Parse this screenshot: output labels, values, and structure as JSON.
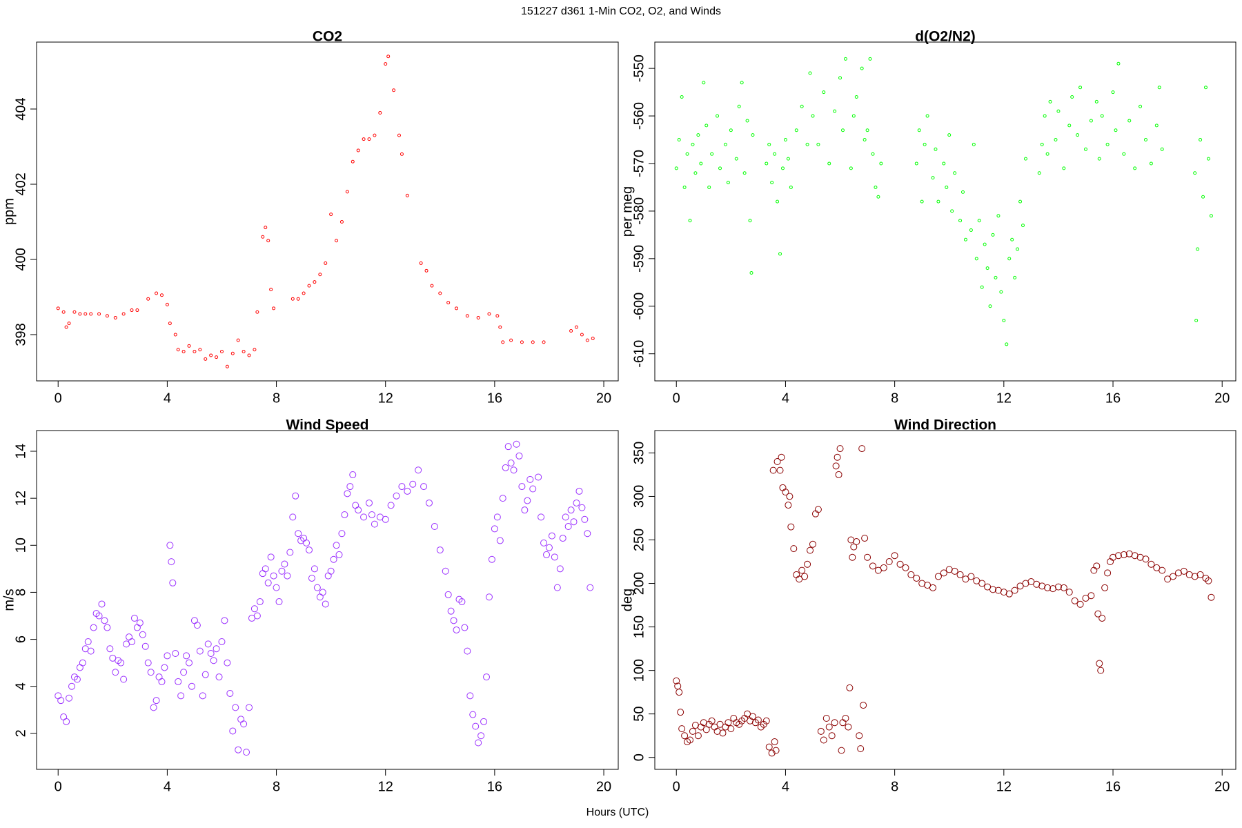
{
  "title": "151227   d361   1-Min CO2, O2, and Winds",
  "xlabel": "Hours (UTC)",
  "chart_data": [
    {
      "type": "scatter",
      "title": "CO2",
      "ylabel": "ppm",
      "color": "#ff0000",
      "marker_size": 2,
      "xlim": [
        -0.79,
        20.53
      ],
      "ylim": [
        396.77,
        405.78
      ],
      "xticks": [
        0,
        4,
        8,
        12,
        16,
        20
      ],
      "yticks": [
        398,
        400,
        402,
        404
      ],
      "x": [
        0.0,
        0.2,
        0.3,
        0.4,
        0.6,
        0.8,
        1.0,
        1.2,
        1.5,
        1.8,
        2.1,
        2.4,
        2.7,
        2.9,
        3.3,
        3.6,
        3.8,
        4.0,
        4.1,
        4.3,
        4.4,
        4.6,
        4.8,
        5.0,
        5.2,
        5.4,
        5.6,
        5.8,
        6.0,
        6.2,
        6.4,
        6.6,
        6.8,
        7.0,
        7.2,
        7.3,
        7.5,
        7.6,
        7.7,
        7.8,
        7.9,
        8.6,
        8.8,
        9.0,
        9.2,
        9.4,
        9.6,
        9.8,
        10.0,
        10.2,
        10.4,
        10.6,
        10.8,
        11.0,
        11.2,
        11.4,
        11.6,
        11.8,
        12.0,
        12.1,
        12.3,
        12.5,
        12.6,
        12.8,
        13.3,
        13.5,
        13.7,
        14.0,
        14.3,
        14.6,
        15.0,
        15.4,
        15.8,
        16.1,
        16.2,
        16.3,
        16.6,
        17.0,
        17.4,
        17.8,
        18.8,
        19.0,
        19.2,
        19.4,
        19.6
      ],
      "values": [
        398.7,
        398.6,
        398.2,
        398.3,
        398.6,
        398.55,
        398.55,
        398.55,
        398.55,
        398.5,
        398.45,
        398.55,
        398.65,
        398.65,
        398.95,
        399.1,
        399.05,
        398.8,
        398.3,
        398.0,
        397.6,
        397.55,
        397.7,
        397.55,
        397.6,
        397.35,
        397.45,
        397.4,
        397.55,
        397.15,
        397.5,
        397.85,
        397.55,
        397.45,
        397.6,
        398.6,
        400.6,
        400.85,
        400.5,
        399.2,
        398.7,
        398.95,
        398.95,
        399.1,
        399.3,
        399.4,
        399.6,
        399.9,
        401.2,
        400.5,
        401.0,
        401.8,
        402.6,
        402.9,
        403.2,
        403.2,
        403.3,
        403.9,
        405.2,
        405.4,
        404.5,
        403.3,
        402.8,
        401.7,
        399.9,
        399.7,
        399.3,
        399.1,
        398.85,
        398.7,
        398.5,
        398.45,
        398.55,
        398.5,
        398.2,
        397.8,
        397.85,
        397.8,
        397.8,
        397.8,
        398.1,
        398.2,
        398.0,
        397.85,
        397.9
      ]
    },
    {
      "type": "scatter",
      "title": "d(O2/N2)",
      "ylabel": "per meg",
      "color": "#00ff00",
      "marker_size": 2,
      "xlim": [
        -0.79,
        20.5
      ],
      "ylim": [
        -615.7,
        -544.47
      ],
      "xticks": [
        0,
        4,
        8,
        12,
        16,
        20
      ],
      "yticks": [
        -610,
        -600,
        -590,
        -580,
        -570,
        -560,
        -550
      ],
      "x": [
        0.0,
        0.1,
        0.2,
        0.3,
        0.4,
        0.5,
        0.6,
        0.7,
        0.8,
        0.9,
        1.0,
        1.1,
        1.2,
        1.3,
        1.5,
        1.6,
        1.8,
        1.9,
        2.0,
        2.2,
        2.3,
        2.4,
        2.5,
        2.6,
        2.7,
        2.75,
        2.8,
        3.3,
        3.4,
        3.5,
        3.6,
        3.7,
        3.8,
        3.9,
        4.0,
        4.1,
        4.2,
        4.4,
        4.6,
        4.8,
        4.9,
        5.0,
        5.2,
        5.4,
        5.6,
        5.8,
        6.0,
        6.1,
        6.2,
        6.4,
        6.5,
        6.6,
        6.8,
        6.9,
        7.0,
        7.1,
        7.2,
        7.3,
        7.4,
        7.5,
        8.8,
        8.9,
        9.0,
        9.1,
        9.2,
        9.4,
        9.5,
        9.6,
        9.8,
        9.9,
        10.0,
        10.1,
        10.2,
        10.4,
        10.5,
        10.6,
        10.8,
        10.9,
        11.0,
        11.1,
        11.2,
        11.3,
        11.4,
        11.5,
        11.6,
        11.7,
        11.8,
        11.9,
        12.0,
        12.1,
        12.2,
        12.3,
        12.4,
        12.5,
        12.6,
        12.7,
        12.8,
        13.3,
        13.4,
        13.5,
        13.6,
        13.7,
        13.9,
        14.0,
        14.2,
        14.4,
        14.5,
        14.7,
        14.8,
        15.0,
        15.2,
        15.4,
        15.5,
        15.6,
        15.8,
        16.0,
        16.1,
        16.2,
        16.4,
        16.6,
        16.8,
        17.0,
        17.2,
        17.4,
        17.6,
        17.7,
        17.8,
        19.0,
        19.05,
        19.1,
        19.2,
        19.3,
        19.4,
        19.5,
        19.6
      ],
      "values": [
        -571,
        -565,
        -556,
        -575,
        -568,
        -582,
        -566,
        -572,
        -564,
        -570,
        -553,
        -562,
        -575,
        -568,
        -560,
        -571,
        -566,
        -574,
        -563,
        -569,
        -558,
        -553,
        -572,
        -561,
        -582,
        -593,
        -564,
        -570,
        -566,
        -574,
        -568,
        -578,
        -589,
        -571,
        -565,
        -569,
        -575,
        -563,
        -558,
        -566,
        -551,
        -560,
        -566,
        -555,
        -570,
        -559,
        -552,
        -563,
        -548,
        -571,
        -560,
        -556,
        -550,
        -565,
        -563,
        -548,
        -568,
        -575,
        -577,
        -570,
        -570,
        -563,
        -578,
        -566,
        -560,
        -573,
        -567,
        -578,
        -570,
        -575,
        -564,
        -580,
        -572,
        -582,
        -576,
        -586,
        -584,
        -566,
        -590,
        -582,
        -596,
        -587,
        -592,
        -600,
        -585,
        -594,
        -581,
        -597,
        -603,
        -608,
        -590,
        -586,
        -594,
        -588,
        -578,
        -583,
        -569,
        -572,
        -566,
        -560,
        -568,
        -557,
        -565,
        -559,
        -571,
        -562,
        -556,
        -564,
        -554,
        -567,
        -561,
        -557,
        -569,
        -560,
        -566,
        -555,
        -563,
        -549,
        -568,
        -561,
        -571,
        -558,
        -565,
        -570,
        -562,
        -554,
        -567,
        -572,
        -603,
        -588,
        -565,
        -577,
        -554,
        -569,
        -581
      ]
    },
    {
      "type": "scatter",
      "title": "Wind Speed",
      "ylabel": "m/s",
      "color": "#9b30ff",
      "marker_size": 4.5,
      "xlim": [
        -0.79,
        20.53
      ],
      "ylim": [
        0.47,
        14.88
      ],
      "xticks": [
        0,
        4,
        8,
        12,
        16,
        20
      ],
      "yticks": [
        2,
        4,
        6,
        8,
        10,
        12,
        14
      ],
      "x": [
        0.0,
        0.1,
        0.2,
        0.3,
        0.4,
        0.5,
        0.6,
        0.7,
        0.8,
        0.9,
        1.0,
        1.1,
        1.2,
        1.3,
        1.4,
        1.5,
        1.6,
        1.7,
        1.8,
        1.9,
        2.0,
        2.1,
        2.2,
        2.3,
        2.4,
        2.5,
        2.6,
        2.7,
        2.8,
        2.9,
        3.0,
        3.1,
        3.2,
        3.3,
        3.4,
        3.5,
        3.6,
        3.7,
        3.8,
        3.9,
        4.0,
        4.1,
        4.15,
        4.2,
        4.3,
        4.4,
        4.5,
        4.6,
        4.7,
        4.8,
        4.9,
        5.0,
        5.1,
        5.2,
        5.3,
        5.4,
        5.5,
        5.6,
        5.7,
        5.8,
        5.9,
        6.0,
        6.1,
        6.2,
        6.3,
        6.4,
        6.5,
        6.6,
        6.7,
        6.8,
        6.9,
        7.0,
        7.1,
        7.2,
        7.3,
        7.4,
        7.5,
        7.6,
        7.7,
        7.8,
        7.9,
        8.0,
        8.1,
        8.2,
        8.3,
        8.4,
        8.5,
        8.6,
        8.7,
        8.8,
        8.9,
        9.0,
        9.1,
        9.2,
        9.3,
        9.4,
        9.5,
        9.6,
        9.7,
        9.8,
        9.9,
        10.0,
        10.1,
        10.2,
        10.3,
        10.4,
        10.5,
        10.6,
        10.7,
        10.8,
        10.9,
        11.0,
        11.2,
        11.4,
        11.5,
        11.6,
        11.8,
        12.0,
        12.2,
        12.4,
        12.6,
        12.8,
        13.0,
        13.2,
        13.4,
        13.6,
        13.8,
        14.0,
        14.2,
        14.3,
        14.4,
        14.5,
        14.6,
        14.7,
        14.8,
        14.9,
        15.0,
        15.1,
        15.2,
        15.3,
        15.4,
        15.5,
        15.6,
        15.7,
        15.8,
        15.9,
        16.0,
        16.1,
        16.2,
        16.3,
        16.4,
        16.5,
        16.6,
        16.7,
        16.8,
        16.9,
        17.0,
        17.1,
        17.2,
        17.3,
        17.4,
        17.6,
        17.7,
        17.8,
        17.9,
        18.0,
        18.1,
        18.2,
        18.3,
        18.4,
        18.5,
        18.6,
        18.7,
        18.8,
        18.9,
        19.0,
        19.1,
        19.2,
        19.3,
        19.4,
        19.5
      ],
      "values": [
        3.6,
        3.4,
        2.7,
        2.5,
        3.5,
        4.0,
        4.4,
        4.3,
        4.8,
        5.0,
        5.6,
        5.9,
        5.5,
        6.5,
        7.1,
        7.0,
        7.5,
        6.8,
        6.5,
        5.6,
        5.2,
        4.6,
        5.1,
        5.0,
        4.3,
        5.8,
        6.1,
        5.9,
        6.9,
        6.5,
        6.7,
        6.2,
        5.7,
        5.0,
        4.6,
        3.1,
        3.4,
        4.4,
        4.2,
        4.8,
        5.3,
        10.0,
        9.3,
        8.4,
        5.4,
        4.2,
        3.6,
        4.6,
        5.3,
        5.0,
        4.0,
        6.8,
        6.6,
        5.5,
        3.6,
        4.5,
        5.8,
        5.4,
        5.1,
        5.6,
        4.4,
        5.9,
        6.8,
        5.0,
        3.7,
        2.1,
        3.1,
        1.3,
        2.6,
        2.4,
        1.2,
        3.1,
        6.9,
        7.3,
        7.0,
        7.6,
        8.8,
        9.0,
        8.4,
        9.5,
        8.7,
        8.2,
        7.6,
        8.9,
        9.2,
        8.7,
        9.7,
        11.2,
        12.1,
        10.5,
        10.2,
        10.3,
        10.1,
        9.8,
        8.6,
        9.0,
        8.2,
        7.8,
        8.0,
        7.5,
        8.7,
        8.9,
        9.4,
        10.0,
        9.6,
        10.5,
        11.3,
        12.2,
        12.5,
        13.0,
        11.7,
        11.5,
        11.2,
        11.8,
        11.3,
        10.9,
        11.2,
        11.1,
        11.7,
        12.1,
        12.5,
        12.3,
        12.6,
        13.2,
        12.5,
        11.8,
        10.8,
        9.8,
        8.9,
        7.9,
        7.2,
        6.8,
        6.4,
        7.7,
        7.6,
        6.5,
        5.5,
        3.6,
        2.8,
        2.3,
        1.6,
        1.9,
        2.5,
        4.4,
        7.8,
        9.4,
        10.7,
        11.2,
        10.2,
        12.0,
        13.3,
        14.2,
        13.5,
        13.2,
        14.3,
        13.8,
        12.5,
        11.5,
        11.9,
        12.8,
        12.4,
        12.9,
        11.2,
        10.1,
        9.6,
        9.9,
        10.4,
        9.5,
        8.2,
        9.0,
        10.3,
        11.2,
        10.8,
        11.5,
        11.0,
        11.8,
        12.3,
        11.6,
        11.1,
        10.5,
        8.2
      ]
    },
    {
      "type": "scatter",
      "title": "Wind Direction",
      "ylabel": "deg",
      "color": "#8b0000",
      "marker_size": 4.5,
      "xlim": [
        -0.79,
        20.5
      ],
      "ylim": [
        -13.7,
        375.7
      ],
      "xticks": [
        0,
        4,
        8,
        12,
        16,
        20
      ],
      "yticks": [
        0,
        50,
        100,
        150,
        200,
        250,
        300,
        350
      ],
      "x": [
        0.0,
        0.05,
        0.1,
        0.15,
        0.2,
        0.3,
        0.4,
        0.5,
        0.6,
        0.7,
        0.8,
        0.9,
        1.0,
        1.1,
        1.2,
        1.3,
        1.4,
        1.5,
        1.6,
        1.7,
        1.8,
        1.9,
        2.0,
        2.1,
        2.2,
        2.3,
        2.4,
        2.5,
        2.6,
        2.7,
        2.8,
        2.9,
        3.0,
        3.1,
        3.2,
        3.3,
        3.4,
        3.5,
        3.55,
        3.6,
        3.65,
        3.7,
        3.8,
        3.85,
        3.9,
        4.0,
        4.1,
        4.15,
        4.2,
        4.3,
        4.4,
        4.5,
        4.6,
        4.7,
        4.8,
        4.9,
        5.0,
        5.1,
        5.2,
        5.3,
        5.4,
        5.5,
        5.6,
        5.7,
        5.8,
        5.85,
        5.9,
        5.95,
        6.0,
        6.05,
        6.1,
        6.2,
        6.3,
        6.35,
        6.4,
        6.45,
        6.5,
        6.6,
        6.7,
        6.75,
        6.8,
        6.85,
        6.9,
        7.0,
        7.2,
        7.4,
        7.6,
        7.8,
        8.0,
        8.2,
        8.4,
        8.6,
        8.8,
        9.0,
        9.2,
        9.4,
        9.6,
        9.8,
        10.0,
        10.2,
        10.4,
        10.6,
        10.8,
        11.0,
        11.2,
        11.4,
        11.6,
        11.8,
        12.0,
        12.2,
        12.4,
        12.6,
        12.8,
        13.0,
        13.2,
        13.4,
        13.6,
        13.8,
        14.0,
        14.2,
        14.4,
        14.6,
        14.8,
        15.0,
        15.2,
        15.3,
        15.4,
        15.45,
        15.5,
        15.55,
        15.6,
        15.7,
        15.8,
        15.9,
        16.0,
        16.2,
        16.4,
        16.6,
        16.8,
        17.0,
        17.2,
        17.4,
        17.6,
        17.8,
        18.0,
        18.2,
        18.4,
        18.6,
        18.8,
        19.0,
        19.2,
        19.4,
        19.5,
        19.6
      ],
      "values": [
        88,
        82,
        75,
        52,
        33,
        25,
        18,
        20,
        30,
        37,
        25,
        35,
        40,
        32,
        38,
        42,
        35,
        30,
        38,
        28,
        35,
        40,
        33,
        45,
        40,
        38,
        42,
        45,
        50,
        42,
        47,
        40,
        43,
        35,
        38,
        42,
        12,
        5,
        330,
        18,
        8,
        340,
        330,
        345,
        310,
        305,
        290,
        300,
        265,
        240,
        210,
        205,
        215,
        208,
        222,
        238,
        245,
        280,
        285,
        30,
        20,
        45,
        35,
        25,
        40,
        335,
        345,
        325,
        355,
        8,
        40,
        45,
        35,
        80,
        250,
        230,
        242,
        248,
        25,
        10,
        355,
        60,
        252,
        230,
        220,
        215,
        218,
        225,
        232,
        222,
        218,
        210,
        206,
        200,
        198,
        195,
        208,
        212,
        216,
        214,
        210,
        205,
        208,
        203,
        200,
        196,
        193,
        192,
        190,
        188,
        192,
        197,
        200,
        202,
        199,
        197,
        195,
        194,
        196,
        195,
        190,
        180,
        176,
        183,
        186,
        215,
        220,
        165,
        108,
        100,
        160,
        195,
        212,
        225,
        230,
        232,
        233,
        234,
        232,
        230,
        228,
        222,
        218,
        215,
        205,
        208,
        212,
        214,
        210,
        208,
        210,
        206,
        203,
        184
      ]
    }
  ]
}
